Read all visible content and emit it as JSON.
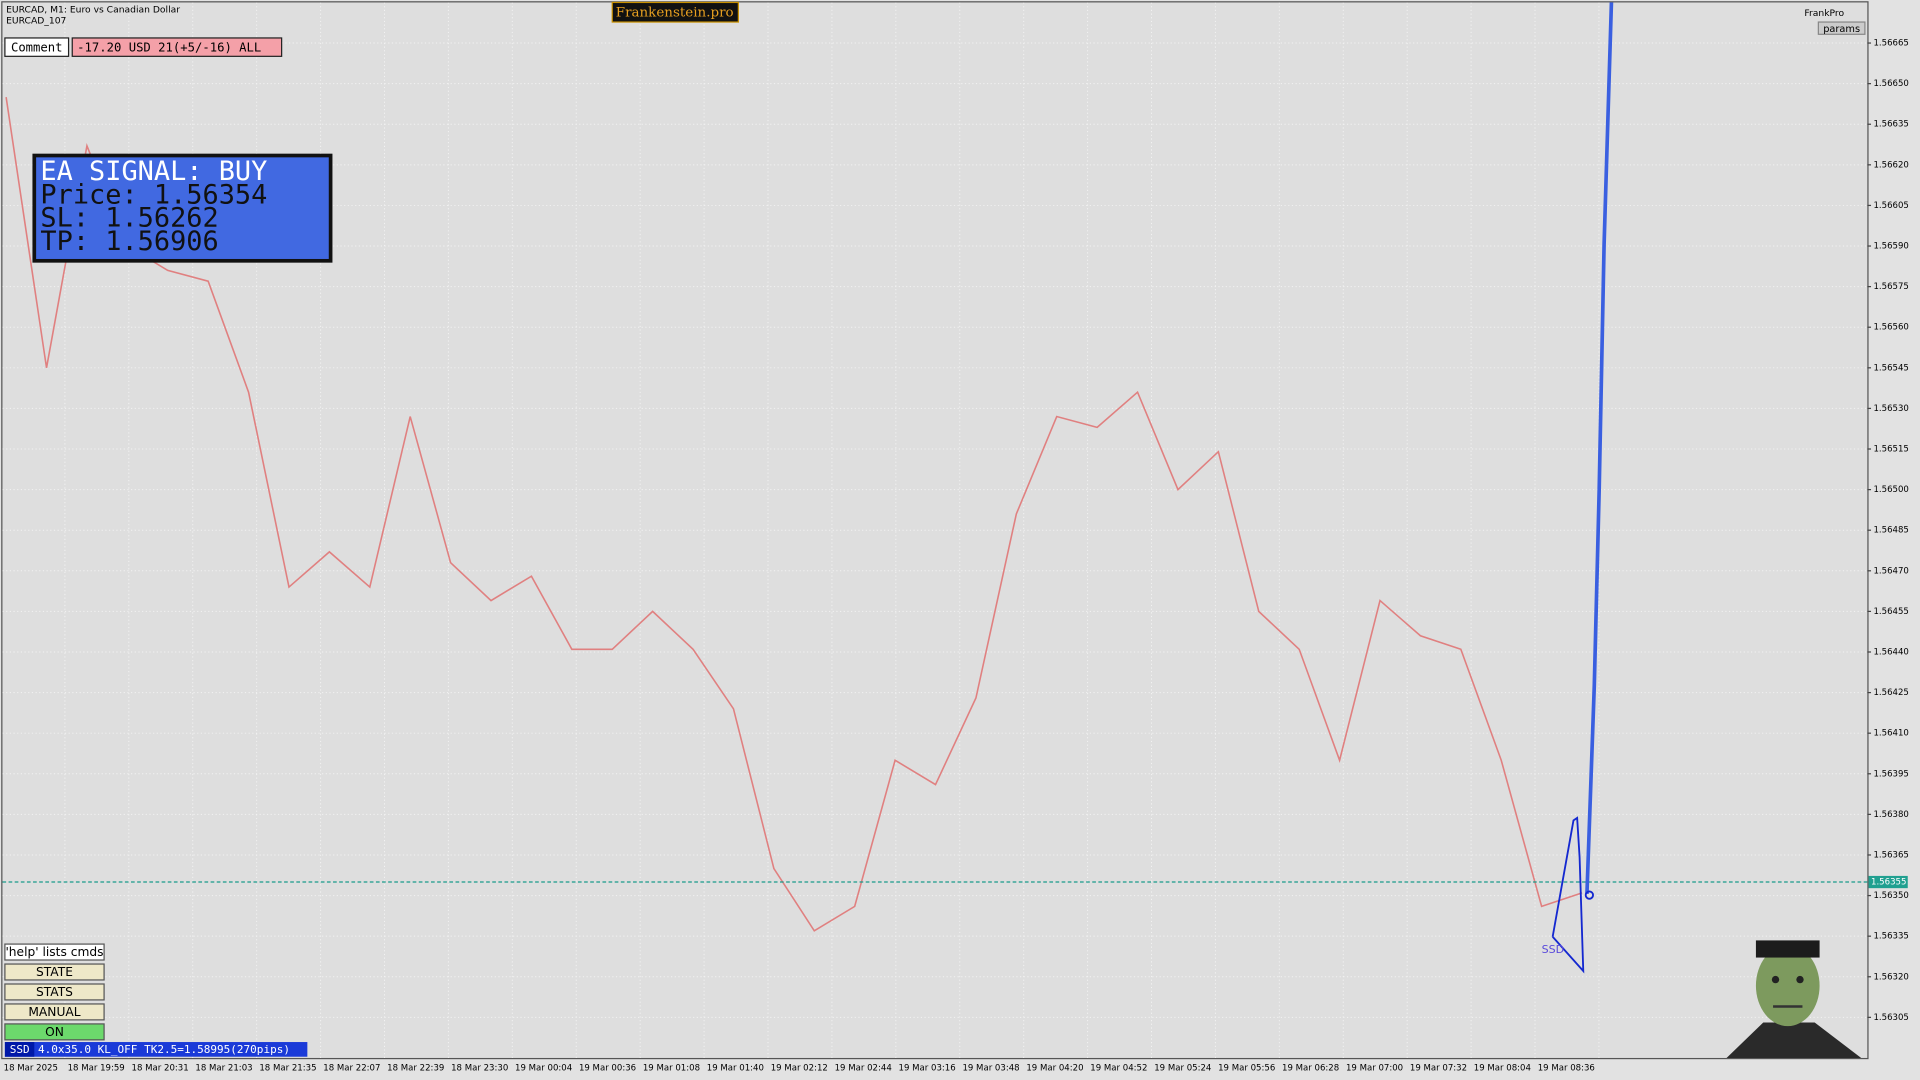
{
  "header": {
    "symbol": "EURCAD, M1:  Euro vs Canadian Dollar",
    "account": "EURCAD_107",
    "brand": "Frankenstein.pro",
    "user": "FrankPro",
    "params": "params"
  },
  "comment": {
    "label": "Comment",
    "value": "-17.20 USD 21(+5/-16) ALL"
  },
  "signal": {
    "title": "EA SIGNAL: BUY",
    "lines": [
      "Price: 1.56354",
      "SL:     1.56262",
      "TP:     1.56906"
    ]
  },
  "buttons": [
    "'help' lists cmds",
    "STATE",
    "STATS",
    "MANUAL",
    "ON"
  ],
  "status": {
    "tag": "SSD",
    "text": "4.0x35.0 KL_OFF TK2.5=1.58995(270pips)"
  },
  "pattern_label": "SSD",
  "chart_data": {
    "type": "line",
    "title": "EURCAD, M1:  Euro vs Canadian Dollar",
    "time_labels": [
      "18 Mar 2025",
      "18 Mar 19:59",
      "18 Mar 20:31",
      "18 Mar 21:03",
      "18 Mar 21:35",
      "18 Mar 22:07",
      "18 Mar 22:39",
      "18 Mar 23:30",
      "19 Mar 00:04",
      "19 Mar 00:36",
      "19 Mar 01:08",
      "19 Mar 01:40",
      "19 Mar 02:12",
      "19 Mar 02:44",
      "19 Mar 03:16",
      "19 Mar 03:48",
      "19 Mar 04:20",
      "19 Mar 04:52",
      "19 Mar 05:24",
      "19 Mar 05:56",
      "19 Mar 06:28",
      "19 Mar 07:00",
      "19 Mar 07:32",
      "19 Mar 08:04",
      "19 Mar 08:36"
    ],
    "series": [
      {
        "name": "EURCAD",
        "color": "#e08080",
        "values": [
          1.56645,
          1.56545,
          1.56627,
          1.5659,
          1.56581,
          1.56577,
          1.56536,
          1.56464,
          1.56477,
          1.56464,
          1.56527,
          1.56473,
          1.56459,
          1.56468,
          1.56441,
          1.56441,
          1.56455,
          1.56441,
          1.56419,
          1.5636,
          1.56337,
          1.56346,
          1.564,
          1.56391,
          1.56423,
          1.56491,
          1.56527,
          1.56523,
          1.56536,
          1.565,
          1.56514,
          1.56455,
          1.56441,
          1.564,
          1.56459,
          1.56446,
          1.56441,
          1.564,
          1.56346,
          1.56351
        ]
      }
    ],
    "current_price": {
      "value": 1.56355,
      "label": "1.56355"
    },
    "ylim": [
      1.5629,
      1.5668
    ],
    "yticks": [
      1.56665,
      {
        "value": 1.5665,
        "label": "1.56650"
      },
      1.56635,
      {
        "value": 1.5662,
        "label": "1.56620"
      },
      1.56605,
      {
        "value": 1.5659,
        "label": "1.56590"
      },
      1.56575,
      {
        "value": 1.5656,
        "label": "1.56560"
      },
      1.56545,
      {
        "value": 1.5653,
        "label": "1.56530"
      },
      1.56515,
      {
        "value": 1.565,
        "label": "1.56500"
      },
      1.56485,
      {
        "value": 1.5647,
        "label": "1.56470"
      },
      1.56455,
      {
        "value": 1.5644,
        "label": "1.56440"
      },
      1.56425,
      {
        "value": 1.5641,
        "label": "1.56410"
      },
      1.56395,
      {
        "value": 1.5638,
        "label": "1.56380"
      },
      1.56365,
      {
        "value": 1.5635,
        "label": "1.56350"
      },
      1.56335,
      {
        "value": 1.5632,
        "label": "1.56320"
      },
      1.56305
    ],
    "grid": true
  }
}
